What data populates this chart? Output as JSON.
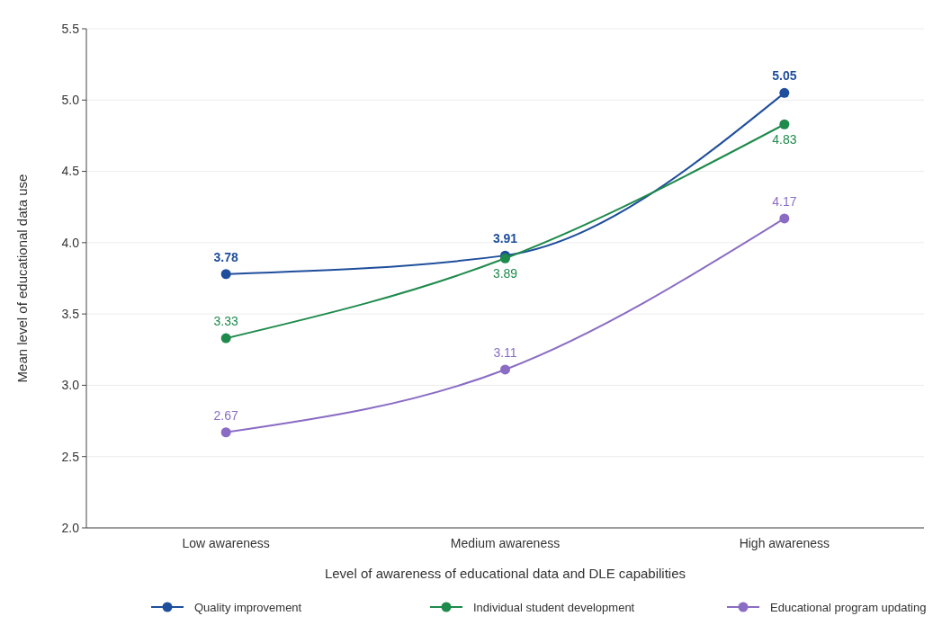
{
  "chart_data": {
    "type": "line",
    "xlabel": "Level of awareness of educational data and DLE capabilities",
    "ylabel": "Mean level of educational data use",
    "categories": [
      "Low awareness",
      "Medium awareness",
      "High awareness"
    ],
    "series": [
      {
        "name": "Quality improvement",
        "color": "#1f4e9c",
        "values": [
          3.78,
          3.91,
          5.05
        ]
      },
      {
        "name": "Individual student development",
        "color": "#1e8a4c",
        "values": [
          3.33,
          3.89,
          4.83
        ]
      },
      {
        "name": "Educational program updating",
        "color": "#8a6cc4",
        "values": [
          2.67,
          3.11,
          4.17
        ]
      }
    ],
    "ylim": [
      2.0,
      5.5
    ],
    "yticks": [
      {
        "value": 2.0,
        "label": "2.0"
      },
      {
        "value": 2.5,
        "label": "2.5"
      },
      {
        "value": 3.0,
        "label": "3.0"
      },
      {
        "value": 3.5,
        "label": "3.5"
      },
      {
        "value": 4.0,
        "label": "4.0"
      },
      {
        "value": 4.5,
        "label": "4.5"
      },
      {
        "value": 5.0,
        "label": "5.0"
      },
      {
        "value": 5.5,
        "label": "5.5"
      }
    ],
    "grid": "y",
    "legend": "bottom",
    "marker": "circle",
    "line_style": "solid",
    "data_labels": true
  }
}
